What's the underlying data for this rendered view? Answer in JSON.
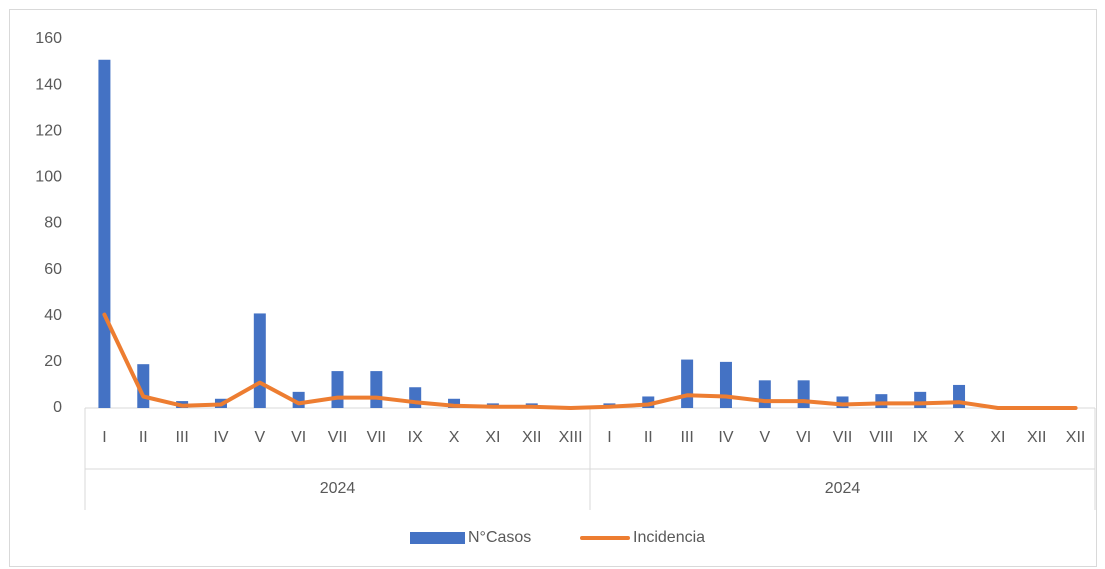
{
  "chart_data": {
    "type": "bar_line",
    "groups": [
      {
        "label": "2024",
        "categories": [
          "I",
          "II",
          "III",
          "IV",
          "V",
          "VI",
          "VII",
          "VII",
          "IX",
          "X",
          "XI",
          "XII",
          "XIII"
        ]
      },
      {
        "label": "2024",
        "categories": [
          "I",
          "II",
          "III",
          "IV",
          "V",
          "VI",
          "VII",
          "VIII",
          "IX",
          "X",
          "XI",
          "XII",
          "XII"
        ]
      }
    ],
    "series": [
      {
        "name": "N°Casos",
        "type": "bar",
        "color": "#4472c4",
        "values": [
          151,
          19,
          3,
          4,
          41,
          7,
          16,
          16,
          9,
          4,
          2,
          2,
          0,
          2,
          5,
          21,
          20,
          12,
          12,
          5,
          6,
          7,
          10,
          0,
          0,
          0
        ]
      },
      {
        "name": "Incidencia",
        "type": "line",
        "color": "#ed7d31",
        "values": [
          40.5,
          5,
          1,
          1.5,
          11,
          2,
          4.5,
          4.5,
          2.5,
          1,
          0.5,
          0.5,
          0,
          0.5,
          1.5,
          5.5,
          5,
          3,
          3,
          1.5,
          2,
          2,
          2.5,
          0,
          0,
          0
        ]
      }
    ],
    "ylim": [
      0,
      160
    ],
    "yticks": [
      0,
      20,
      40,
      60,
      80,
      100,
      120,
      140,
      160
    ],
    "grid": false,
    "legend": "bottom"
  }
}
